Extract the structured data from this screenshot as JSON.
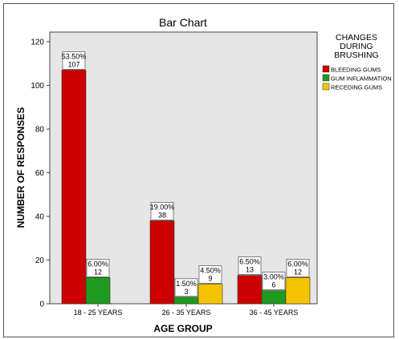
{
  "chart_data": {
    "type": "bar",
    "title": "Bar Chart",
    "xlabel": "AGE GROUP",
    "ylabel": "NUMBER OF RESPONSES",
    "ylim": [
      0,
      120
    ],
    "yticks": [
      "0",
      "20",
      "40",
      "60",
      "80",
      "100",
      "120"
    ],
    "categories": [
      "18 - 25 YEARS",
      "26 - 35 YEARS",
      "36 - 45 YEARS"
    ],
    "legend": {
      "title": "CHANGES DURING BRUSHING",
      "title_lines": [
        "CHANGES",
        "DURING",
        "BRUSHING"
      ],
      "placement": "right"
    },
    "grid": false,
    "series": [
      {
        "name": "BLEEDING GUMS",
        "color": "#cc0000",
        "values": [
          107,
          38,
          13
        ],
        "percent_labels": [
          "53.50%",
          "19.00%",
          "6.50%"
        ],
        "count_labels": [
          "107",
          "38",
          "13"
        ]
      },
      {
        "name": "GUM INFLAMMATION",
        "color": "#1e9b1e",
        "values": [
          12,
          3,
          6
        ],
        "percent_labels": [
          "6.00%",
          "1.50%",
          "3.00%"
        ],
        "count_labels": [
          "12",
          "3",
          "6"
        ]
      },
      {
        "name": "RECEDING GUMS",
        "color": "#f5c400",
        "values": [
          0,
          9,
          12
        ],
        "percent_labels": [
          null,
          "4.50%",
          "6.00%"
        ],
        "count_labels": [
          null,
          "9",
          "12"
        ]
      }
    ]
  }
}
